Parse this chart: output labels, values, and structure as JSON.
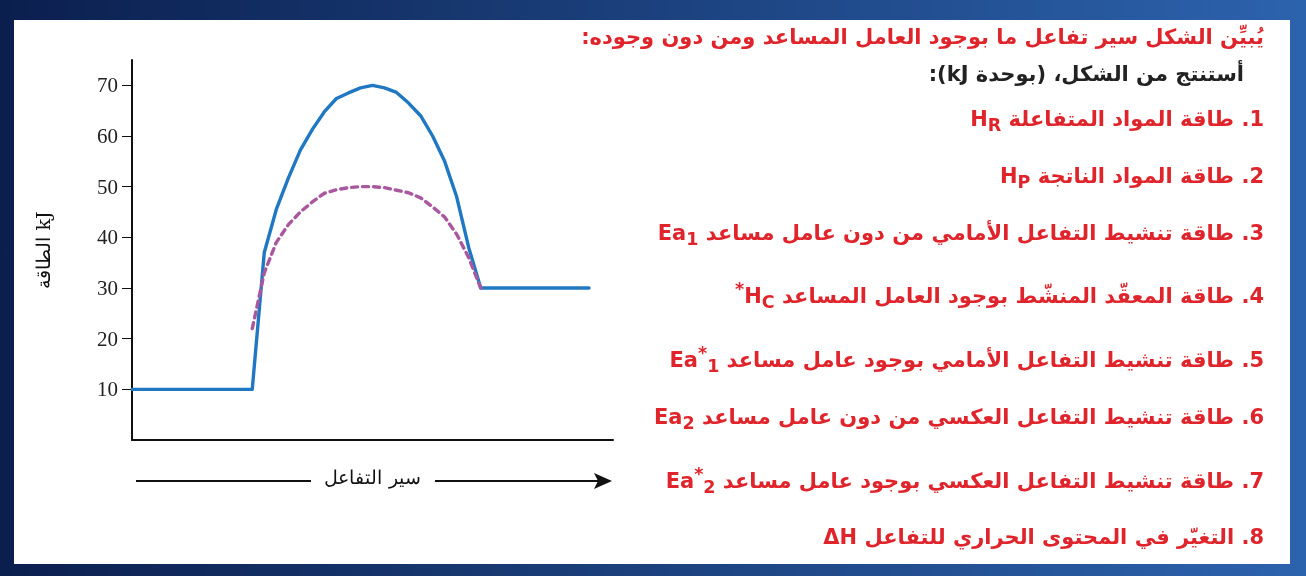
{
  "chart_data": {
    "type": "line",
    "title": "يُبيِّن الشكل سير تفاعل ما بوجود العامل المساعد ومن دون وجوده:",
    "subtitle": "أستنتج من الشكل، (بوحدة kJ):",
    "xlabel": "سير التفاعل",
    "ylabel": "الطاقة kJ",
    "categories": [
      null,
      null,
      null,
      null,
      null,
      null,
      null,
      null,
      null,
      null,
      null,
      null,
      null,
      null,
      null,
      null,
      null,
      null,
      null,
      null,
      null,
      null,
      null,
      null,
      null,
      null,
      null,
      null,
      null,
      null,
      null,
      null,
      null,
      null,
      null,
      null,
      null,
      null,
      null,
      null,
      null
    ],
    "ylim": [
      0,
      75
    ],
    "yticks": [
      10,
      20,
      30,
      40,
      50,
      60,
      70
    ],
    "tick_labels": "y",
    "marker": "none",
    "series": [
      {
        "color": "#1f78c1",
        "line_style": "solid",
        "values": [
          10,
          10,
          10,
          10,
          10,
          10,
          10,
          10,
          10,
          10,
          10,
          37,
          45.5,
          51.7,
          57.2,
          61.3,
          64.8,
          67.4,
          68.5,
          69.5,
          70,
          69.5,
          68.6,
          66.5,
          64,
          60,
          55,
          48,
          38,
          30,
          30,
          30,
          30,
          30,
          30,
          30,
          30,
          30,
          30,
          null,
          null
        ]
      },
      {
        "color": "#a9579f",
        "line_style": "dashed",
        "values": [
          null,
          null,
          null,
          null,
          null,
          null,
          null,
          null,
          null,
          null,
          22,
          33,
          39,
          42.5,
          45,
          47,
          48.7,
          49.4,
          49.8,
          50,
          50,
          49.8,
          49.3,
          48.8,
          47.8,
          46,
          44,
          40.6,
          36,
          30,
          null,
          null,
          null,
          null,
          null,
          null,
          null,
          null,
          null,
          null,
          null
        ]
      }
    ],
    "annotations": [
      "1. طاقة المواد المتفاعلة H$_{R}$",
      "2. طاقة المواد الناتجة H$_{P}$",
      "3. طاقة تنشيط التفاعل الأمامي من دون عامل مساعد Ea$_{1}$",
      "4. طاقة المعقّد المنشّط بوجود العامل المساعد H$_{C}$$^{*}$",
      "5. طاقة تنشيط التفاعل الأمامي بوجود عامل مساعد Ea$^{*}$$_{1}$",
      "6. طاقة تنشيط التفاعل العكسي من دون عامل مساعد Ea$_{2}$",
      "7. طاقة تنشيط التفاعل العكسي بوجود عامل مساعد Ea$^{*}$$_{2}$",
      "8. التغيّر في المحتوى الحراري للتفاعل ΔH"
    ]
  }
}
